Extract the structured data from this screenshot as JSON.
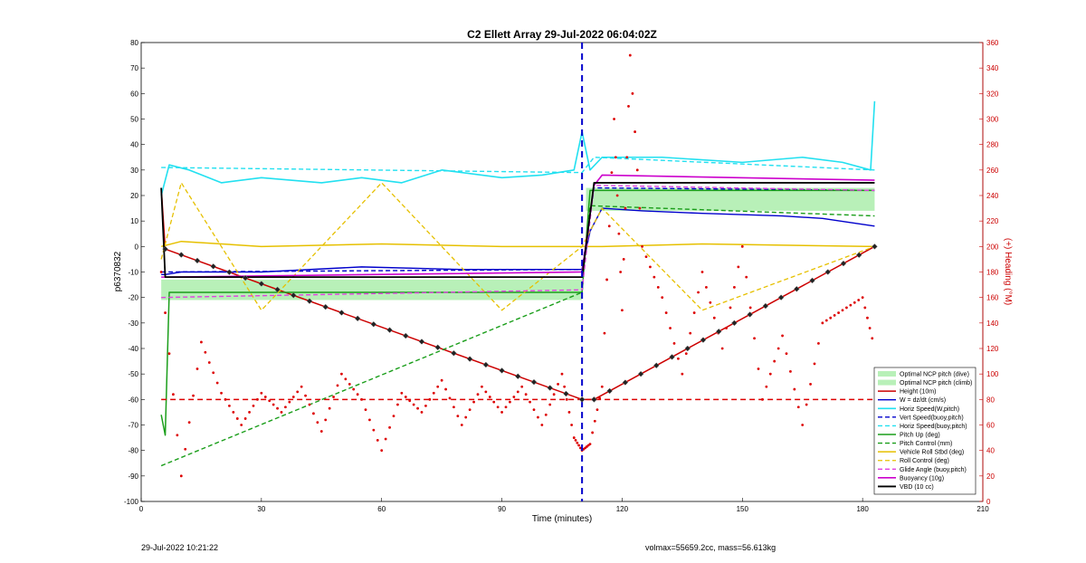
{
  "chart_data": {
    "type": "line",
    "title": "C2 Ellett Array 29-Jul-2022 06:04:02Z",
    "xlabel": "Time (minutes)",
    "ylabel": "p6370832",
    "y2label": "(+) Heading (°M)",
    "xlim": [
      0,
      210
    ],
    "ylim": [
      -100,
      80
    ],
    "y2lim": [
      0,
      360
    ],
    "x_ticks": [
      "0",
      "30",
      "60",
      "90",
      "120",
      "150",
      "180",
      "210"
    ],
    "y_ticks": [
      "-100",
      "-90",
      "-80",
      "-70",
      "-60",
      "-50",
      "-40",
      "-30",
      "-20",
      "-10",
      "0",
      "10",
      "20",
      "30",
      "40",
      "50",
      "60",
      "70",
      "80"
    ],
    "y2_ticks": [
      "0",
      "20",
      "40",
      "60",
      "80",
      "100",
      "120",
      "140",
      "160",
      "180",
      "200",
      "220",
      "240",
      "260",
      "280",
      "300",
      "320",
      "340",
      "360"
    ],
    "grid": false,
    "legend_position": "bottom-right",
    "colors": {
      "ncp_fill": "#b8f0b8",
      "height": "#cc0000",
      "vert_speed": "#0000cc",
      "horiz_speed": "#22e0f0",
      "pitch": "#1a9e1a",
      "roll": "#e6c000",
      "glide": "#e040e0",
      "buoyancy": "#cc00cc",
      "vbd": "#000000",
      "heading": "#dd0000",
      "right_axis": "#cc0000",
      "dive_climb_marker": "#0000cc"
    },
    "dive_climb_time": 110,
    "apogee_marker_time": 110,
    "series": [
      {
        "name": "Optimal NCP pitch (dive)",
        "type": "band",
        "x": [
          5,
          110
        ],
        "y_low": -21,
        "y_high": -13
      },
      {
        "name": "Optimal NCP pitch (climb)",
        "type": "band",
        "x": [
          111,
          183
        ],
        "y_low": 14,
        "y_high": 23
      },
      {
        "name": "Height (10m)",
        "x": [
          5,
          6,
          110,
          113,
          183
        ],
        "y": [
          23,
          -1,
          -60,
          -60,
          0
        ]
      },
      {
        "name": "W = dz/dt (cm/s)",
        "x": [
          5,
          6,
          10,
          30,
          55,
          80,
          110,
          112,
          115,
          125,
          140,
          160,
          170,
          183
        ],
        "y": [
          -11,
          -11,
          -10,
          -10,
          -8,
          -9,
          -9,
          6,
          15,
          14,
          13,
          12,
          11,
          8
        ]
      },
      {
        "name": "Horiz Speed(W,pitch)",
        "x": [
          5,
          7,
          12,
          20,
          30,
          45,
          55,
          65,
          75,
          90,
          100,
          108,
          110,
          112,
          115,
          130,
          150,
          165,
          175,
          182,
          183
        ],
        "y": [
          20,
          32,
          30,
          25,
          27,
          25,
          27,
          25,
          30,
          27,
          28,
          30,
          45,
          30,
          35,
          35,
          33,
          35,
          33,
          30,
          57
        ]
      },
      {
        "name": "Vert Speed(buoy,pitch)",
        "x": [
          5,
          110,
          113,
          183
        ],
        "y": [
          -10,
          -9,
          23,
          22
        ]
      },
      {
        "name": "Horiz Speed(buoy,pitch)",
        "x": [
          5,
          110,
          113,
          183
        ],
        "y": [
          31,
          29,
          35,
          30
        ]
      },
      {
        "name": "Pitch Up (deg)",
        "x": [
          5,
          6,
          7,
          110,
          112,
          115,
          183
        ],
        "y": [
          -66,
          -74,
          -18,
          -18,
          22,
          22,
          22
        ]
      },
      {
        "name": "Pitch Control (mm)",
        "x": [
          5,
          110,
          112,
          183
        ],
        "y": [
          -86,
          -18,
          16,
          12
        ]
      },
      {
        "name": "Vehicle Roll Stbd (deg)",
        "x": [
          5,
          10,
          30,
          60,
          90,
          110,
          115,
          140,
          183
        ],
        "y": [
          0,
          2,
          0,
          1,
          0,
          0,
          0,
          1,
          0
        ]
      },
      {
        "name": "Roll Control (deg)",
        "x": [
          5,
          10,
          30,
          60,
          90,
          110,
          115,
          140,
          183
        ],
        "y": [
          -5,
          25,
          -25,
          25,
          -25,
          0,
          15,
          -25,
          0
        ]
      },
      {
        "name": "Glide Angle (buoy,pitch)",
        "x": [
          5,
          110,
          113,
          183
        ],
        "y": [
          -20,
          -17,
          24,
          22
        ]
      },
      {
        "name": "Buoyancy (10g)",
        "x": [
          5,
          6,
          110,
          113,
          115,
          183
        ],
        "y": [
          -12,
          -12,
          -10,
          24,
          28,
          26
        ]
      },
      {
        "name": "VBD (10 cc)",
        "x": [
          5,
          6,
          110,
          113,
          183
        ],
        "y": [
          23,
          -12,
          -12,
          25,
          25
        ]
      },
      {
        "name": "Heading",
        "axis": "right",
        "x": [
          5,
          10,
          15,
          20,
          25,
          30,
          35,
          40,
          45,
          50,
          55,
          60,
          65,
          70,
          75,
          80,
          85,
          90,
          95,
          100,
          105,
          108,
          110,
          112,
          115,
          118,
          120,
          122,
          125,
          130,
          135,
          140,
          145,
          150,
          155,
          160,
          165,
          170,
          175,
          180,
          183
        ],
        "y": [
          180,
          20,
          125,
          85,
          60,
          85,
          70,
          90,
          55,
          100,
          80,
          40,
          85,
          70,
          95,
          60,
          90,
          70,
          90,
          60,
          100,
          50,
          40,
          45,
          90,
          300,
          150,
          350,
          200,
          160,
          100,
          180,
          120,
          200,
          80,
          130,
          60,
          140,
          150,
          160,
          120
        ]
      }
    ],
    "annotations": {
      "footer_left": "29-Jul-2022 10:21:22",
      "footer_right": "volmax=55659.2cc, mass=56.613kg"
    }
  }
}
